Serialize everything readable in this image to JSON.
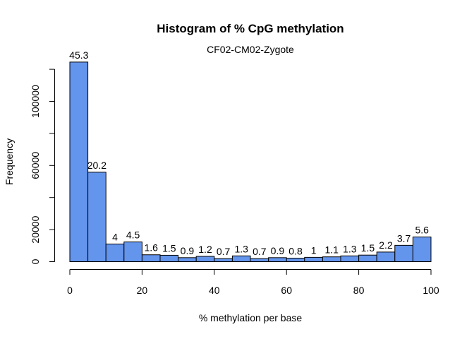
{
  "chart_data": {
    "type": "bar",
    "title": "Histogram of % CpG methylation",
    "subtitle": "CF02-CM02-Zygote",
    "xlabel": "% methylation per base",
    "ylabel": "Frequency",
    "xlim": [
      0,
      100
    ],
    "ylim": [
      0,
      120000
    ],
    "x_ticks": [
      "0",
      "20",
      "40",
      "60",
      "80",
      "100"
    ],
    "y_ticks": [
      "0",
      "20000",
      "60000",
      "100000"
    ],
    "bin_edges": [
      0,
      5,
      10,
      15,
      20,
      25,
      30,
      35,
      40,
      45,
      50,
      55,
      60,
      65,
      70,
      75,
      80,
      85,
      90,
      95,
      100
    ],
    "values": [
      124500,
      55800,
      11000,
      12300,
      4300,
      4000,
      2500,
      3300,
      1900,
      3600,
      1900,
      2500,
      2200,
      2700,
      3000,
      3600,
      4100,
      6000,
      10200,
      15400
    ],
    "labels": [
      "45.3",
      "20.2",
      "4",
      "4.5",
      "1.6",
      "1.5",
      "0.9",
      "1.2",
      "0.7",
      "1.3",
      "0.7",
      "0.9",
      "0.8",
      "1",
      "1.1",
      "1.3",
      "1.5",
      "2.2",
      "3.7",
      "5.6"
    ],
    "bar_color": "#6495ED",
    "grid": false
  }
}
